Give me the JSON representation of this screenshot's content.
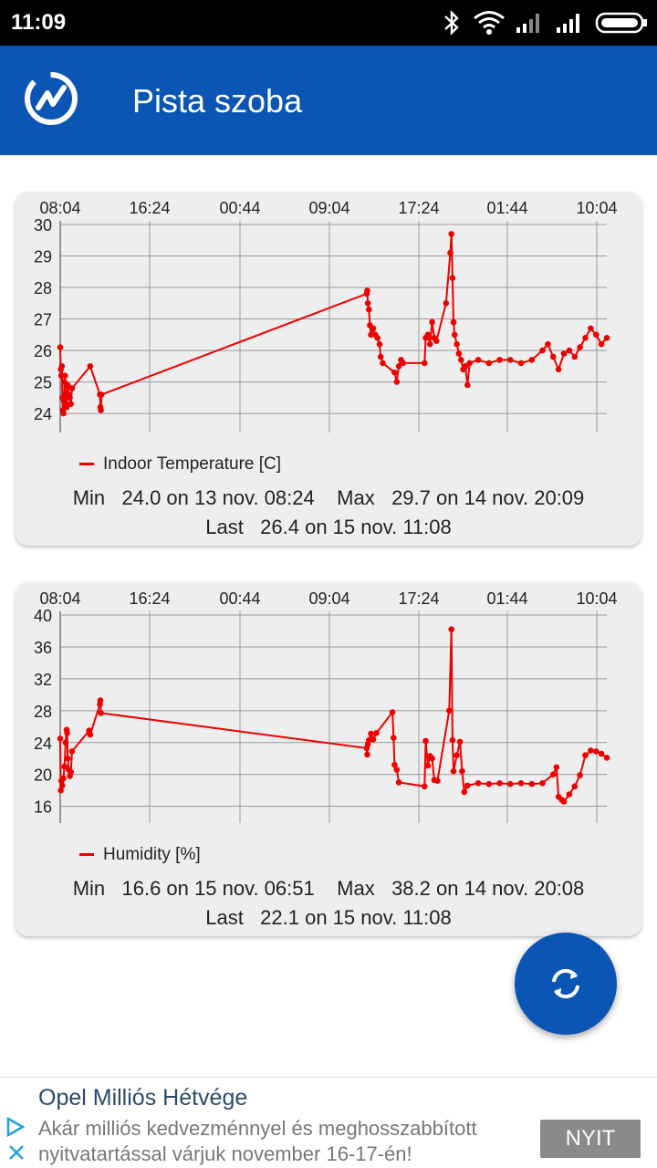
{
  "status_bar": {
    "time": "11:09"
  },
  "app_bar": {
    "title": "Pista szoba"
  },
  "charts": [
    {
      "id": "temp",
      "x_tick_labels": [
        "08:04",
        "16:24",
        "00:44",
        "09:04",
        "17:24",
        "01:44",
        "10:04"
      ],
      "y_tick_labels": [
        "30",
        "29",
        "28",
        "27",
        "26",
        "25",
        "24"
      ],
      "legend": "Indoor Temperature [C]",
      "stats_line1": "Min   24.0 on 13 nov. 08:24    Max   29.7 on 14 nov. 20:09",
      "stats_line2": "Last   26.4 on 15 nov. 11:08"
    },
    {
      "id": "hum",
      "x_tick_labels": [
        "08:04",
        "16:24",
        "00:44",
        "09:04",
        "17:24",
        "01:44",
        "10:04"
      ],
      "y_tick_labels": [
        "40",
        "36",
        "32",
        "28",
        "24",
        "20",
        "16"
      ],
      "legend": "Humidity [%]",
      "stats_line1": "Min   16.6 on 15 nov. 06:51    Max   38.2 on 14 nov. 20:08",
      "stats_line2": "Last   22.1 on 15 nov. 11:08"
    }
  ],
  "chart_data": [
    {
      "type": "line",
      "x_unit": "hours since 13 nov. 08:04",
      "x_ticks": [
        "08:04",
        "16:24",
        "00:44",
        "09:04",
        "17:24",
        "01:44",
        "10:04"
      ],
      "xlim": [
        0,
        51
      ],
      "ylim": [
        23.8,
        30
      ],
      "series": [
        {
          "name": "Indoor Temperature [C]",
          "color": "#ee0000",
          "points": [
            [
              0.0,
              26.1
            ],
            [
              0.05,
              25.4
            ],
            [
              0.1,
              25.2
            ],
            [
              0.15,
              25.5
            ],
            [
              0.2,
              24.5
            ],
            [
              0.25,
              24.1
            ],
            [
              0.3,
              24.0
            ],
            [
              0.35,
              24.4
            ],
            [
              0.4,
              25.0
            ],
            [
              0.45,
              25.2
            ],
            [
              0.5,
              24.6
            ],
            [
              0.55,
              24.3
            ],
            [
              0.6,
              24.2
            ],
            [
              0.7,
              24.9
            ],
            [
              0.8,
              24.6
            ],
            [
              0.9,
              24.5
            ],
            [
              1.0,
              24.3
            ],
            [
              1.1,
              24.8
            ],
            [
              2.8,
              25.5
            ],
            [
              3.7,
              24.6
            ],
            [
              3.75,
              24.2
            ],
            [
              3.8,
              24.1
            ],
            [
              3.85,
              24.6
            ],
            [
              28.6,
              27.8
            ],
            [
              28.65,
              27.9
            ],
            [
              28.7,
              27.5
            ],
            [
              28.8,
              27.3
            ],
            [
              28.9,
              26.8
            ],
            [
              29.0,
              26.5
            ],
            [
              29.2,
              26.7
            ],
            [
              29.4,
              26.5
            ],
            [
              29.6,
              26.4
            ],
            [
              29.8,
              26.2
            ],
            [
              29.9,
              25.8
            ],
            [
              30.1,
              25.6
            ],
            [
              31.2,
              25.3
            ],
            [
              31.4,
              25.0
            ],
            [
              31.6,
              25.5
            ],
            [
              31.8,
              25.7
            ],
            [
              32.0,
              25.6
            ],
            [
              34.0,
              25.6
            ],
            [
              34.1,
              26.4
            ],
            [
              34.3,
              26.5
            ],
            [
              34.5,
              26.2
            ],
            [
              34.7,
              26.9
            ],
            [
              34.9,
              26.4
            ],
            [
              35.1,
              26.3
            ],
            [
              36.0,
              27.5
            ],
            [
              36.4,
              29.1
            ],
            [
              36.5,
              29.7
            ],
            [
              36.6,
              28.3
            ],
            [
              36.7,
              26.9
            ],
            [
              36.8,
              26.5
            ],
            [
              37.0,
              26.2
            ],
            [
              37.2,
              25.9
            ],
            [
              37.4,
              25.7
            ],
            [
              37.6,
              25.4
            ],
            [
              37.8,
              25.5
            ],
            [
              38.0,
              24.9
            ],
            [
              38.2,
              25.6
            ],
            [
              39.0,
              25.7
            ],
            [
              40.0,
              25.6
            ],
            [
              41.0,
              25.7
            ],
            [
              42.0,
              25.7
            ],
            [
              43.0,
              25.6
            ],
            [
              44.0,
              25.7
            ],
            [
              45.0,
              26.0
            ],
            [
              45.5,
              26.2
            ],
            [
              46.0,
              25.8
            ],
            [
              46.5,
              25.4
            ],
            [
              47.0,
              25.9
            ],
            [
              47.5,
              26.0
            ],
            [
              48.0,
              25.8
            ],
            [
              48.5,
              26.1
            ],
            [
              49.0,
              26.4
            ],
            [
              49.5,
              26.7
            ],
            [
              50.0,
              26.5
            ],
            [
              50.5,
              26.2
            ],
            [
              51.0,
              26.4
            ]
          ]
        }
      ]
    },
    {
      "type": "line",
      "x_unit": "hours since 13 nov. 08:04",
      "x_ticks": [
        "08:04",
        "16:24",
        "00:44",
        "09:04",
        "17:24",
        "01:44",
        "10:04"
      ],
      "xlim": [
        0,
        51
      ],
      "ylim": [
        15.5,
        40
      ],
      "series": [
        {
          "name": "Humidity [%]",
          "color": "#ee0000",
          "points": [
            [
              0.0,
              24.5
            ],
            [
              0.05,
              18.0
            ],
            [
              0.1,
              19.2
            ],
            [
              0.2,
              18.6
            ],
            [
              0.3,
              19.5
            ],
            [
              0.4,
              21.0
            ],
            [
              0.5,
              24.0
            ],
            [
              0.6,
              25.6
            ],
            [
              0.65,
              25.2
            ],
            [
              0.7,
              22.0
            ],
            [
              0.8,
              20.6
            ],
            [
              0.9,
              19.8
            ],
            [
              1.0,
              20.3
            ],
            [
              1.1,
              22.9
            ],
            [
              2.7,
              25.5
            ],
            [
              2.8,
              25.0
            ],
            [
              3.7,
              28.8
            ],
            [
              3.75,
              29.3
            ],
            [
              3.8,
              27.7
            ],
            [
              28.6,
              23.3
            ],
            [
              28.65,
              22.5
            ],
            [
              28.7,
              23.8
            ],
            [
              28.8,
              24.3
            ],
            [
              29.0,
              25.1
            ],
            [
              29.2,
              24.4
            ],
            [
              29.5,
              25.2
            ],
            [
              31.0,
              27.8
            ],
            [
              31.1,
              24.6
            ],
            [
              31.2,
              21.2
            ],
            [
              31.4,
              20.6
            ],
            [
              31.6,
              19.0
            ],
            [
              34.0,
              18.5
            ],
            [
              34.1,
              24.2
            ],
            [
              34.3,
              21.1
            ],
            [
              34.5,
              22.3
            ],
            [
              34.7,
              22.0
            ],
            [
              34.9,
              19.3
            ],
            [
              35.2,
              19.2
            ],
            [
              36.3,
              28.0
            ],
            [
              36.5,
              38.2
            ],
            [
              36.6,
              24.3
            ],
            [
              36.7,
              20.4
            ],
            [
              37.0,
              22.4
            ],
            [
              37.3,
              24.1
            ],
            [
              37.5,
              20.4
            ],
            [
              37.7,
              17.8
            ],
            [
              38.0,
              18.6
            ],
            [
              39.0,
              18.9
            ],
            [
              40.0,
              18.8
            ],
            [
              41.0,
              18.9
            ],
            [
              42.0,
              18.8
            ],
            [
              43.0,
              18.9
            ],
            [
              44.0,
              18.8
            ],
            [
              45.0,
              18.9
            ],
            [
              46.0,
              20.0
            ],
            [
              46.3,
              20.9
            ],
            [
              46.5,
              17.2
            ],
            [
              46.8,
              16.8
            ],
            [
              47.0,
              16.6
            ],
            [
              47.5,
              17.5
            ],
            [
              48.0,
              18.5
            ],
            [
              48.5,
              19.9
            ],
            [
              49.0,
              22.4
            ],
            [
              49.5,
              23.0
            ],
            [
              50.0,
              22.9
            ],
            [
              50.5,
              22.6
            ],
            [
              51.0,
              22.1
            ]
          ]
        }
      ]
    }
  ],
  "fab": {
    "icon": "refresh-icon",
    "color": "#0b55b5"
  },
  "ad": {
    "title": "Opel Milliós Hétvége",
    "body": "Akár milliós kedvezménnyel és meghosszabbított nyitvatartással várjuk november 16-17-én!",
    "button": "NYIT"
  },
  "colors": {
    "primary": "#0b55b5",
    "series": "#ee0000",
    "card": "#eeeeee"
  }
}
